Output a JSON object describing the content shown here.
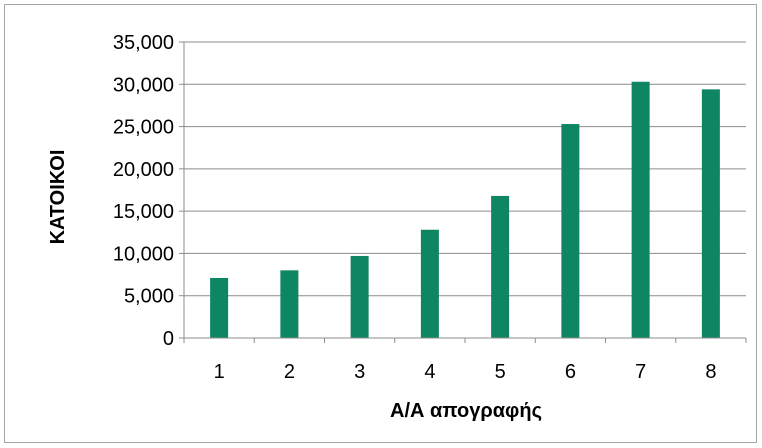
{
  "chart_data": {
    "type": "bar",
    "categories": [
      "1",
      "2",
      "3",
      "4",
      "5",
      "6",
      "7",
      "8"
    ],
    "values": [
      7100,
      8000,
      9700,
      12800,
      16800,
      25300,
      30300,
      29400
    ],
    "xlabel": "Α/Α απογραφής",
    "ylabel": "ΚΑΤΟΙΚΟΙ",
    "ylim": [
      0,
      35000
    ],
    "yticks": [
      0,
      5000,
      10000,
      15000,
      20000,
      25000,
      30000,
      35000
    ],
    "ytick_labels": [
      "0",
      "5,000",
      "10,000",
      "15,000",
      "20,000",
      "25,000",
      "30,000",
      "35,000"
    ],
    "grid": "horizontal",
    "legend": "none",
    "bar_color": "#0e8563"
  }
}
